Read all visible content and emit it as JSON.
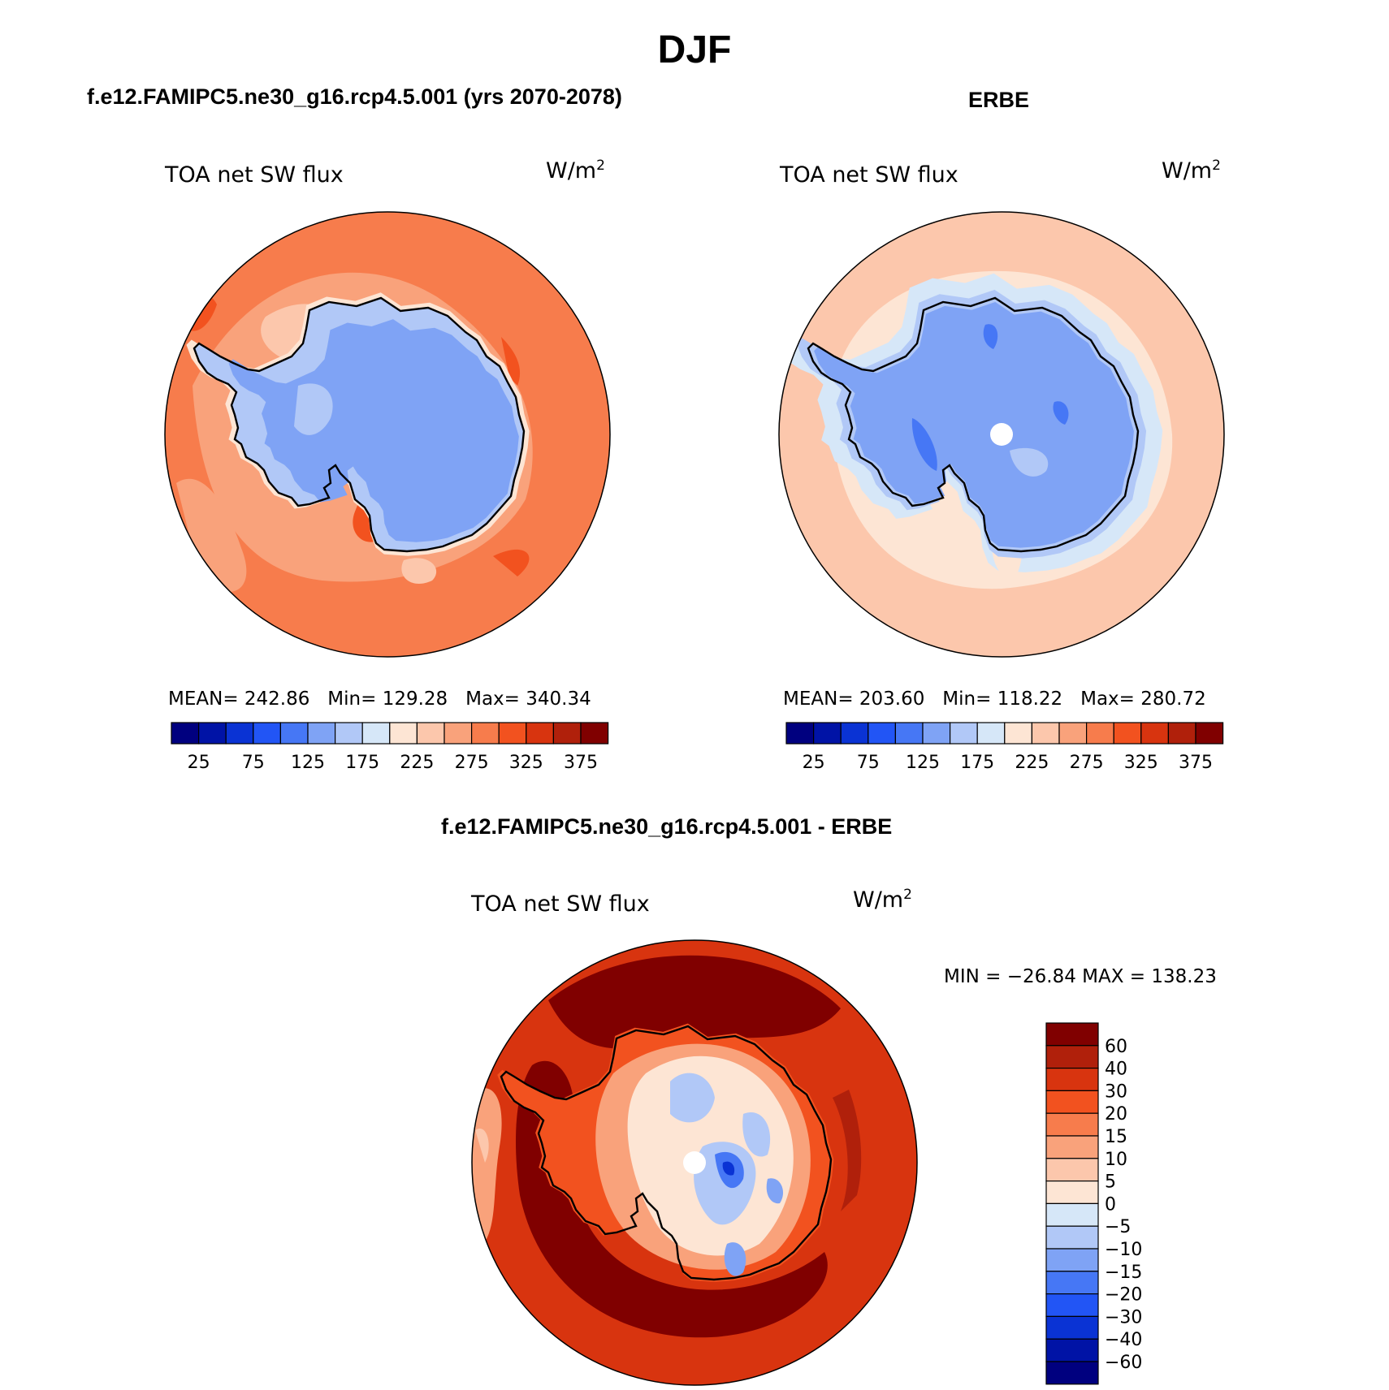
{
  "title": "DJF",
  "panels": [
    {
      "id": "model",
      "heading": "f.e12.FAMIPC5.ne30_g16.rcp4.5.001 (yrs 2070-2078)",
      "variable": "TOA net SW flux",
      "units_base": "W/m",
      "units_exp": "2",
      "stats": "MEAN= 242.86   Min= 129.28   Max= 340.34",
      "mean": 242.86,
      "min": 129.28,
      "max": 340.34
    },
    {
      "id": "obs",
      "heading": "ERBE",
      "variable": "TOA net SW flux",
      "units_base": "W/m",
      "units_exp": "2",
      "stats": "MEAN= 203.60   Min= 118.22   Max= 280.72",
      "mean": 203.6,
      "min": 118.22,
      "max": 280.72
    },
    {
      "id": "diff",
      "heading": "f.e12.FAMIPC5.ne30_g16.rcp4.5.001 - ERBE",
      "variable": "TOA net SW flux",
      "units_base": "W/m",
      "units_exp": "2",
      "stats": "MIN = −26.84 MAX = 138.23",
      "min": -26.84,
      "max": 138.23
    }
  ],
  "abs_colorbar": {
    "colors": [
      "#00007f",
      "#0013a6",
      "#0a33d4",
      "#2255f5",
      "#4677f5",
      "#7fa3f5",
      "#b1c8f7",
      "#d6e7f8",
      "#fde5d4",
      "#fcc7ac",
      "#f9a27b",
      "#f77c4c",
      "#f2521f",
      "#d8340f",
      "#b0200b",
      "#800000"
    ],
    "labels": [
      "25",
      "75",
      "125",
      "175",
      "225",
      "275",
      "325",
      "375"
    ]
  },
  "diff_colorbar": {
    "colors": [
      "#800000",
      "#b0200b",
      "#d8340f",
      "#f2521f",
      "#f77c4c",
      "#f9a27b",
      "#fcc7ac",
      "#fde5d4",
      "#d6e7f8",
      "#b1c8f7",
      "#7fa3f5",
      "#4677f5",
      "#2255f5",
      "#0a33d4",
      "#0013a6",
      "#00007f"
    ],
    "labels": [
      "60",
      "40",
      "30",
      "20",
      "15",
      "10",
      "5",
      "0",
      "−5",
      "−10",
      "−15",
      "−20",
      "−30",
      "−40",
      "−60"
    ]
  }
}
